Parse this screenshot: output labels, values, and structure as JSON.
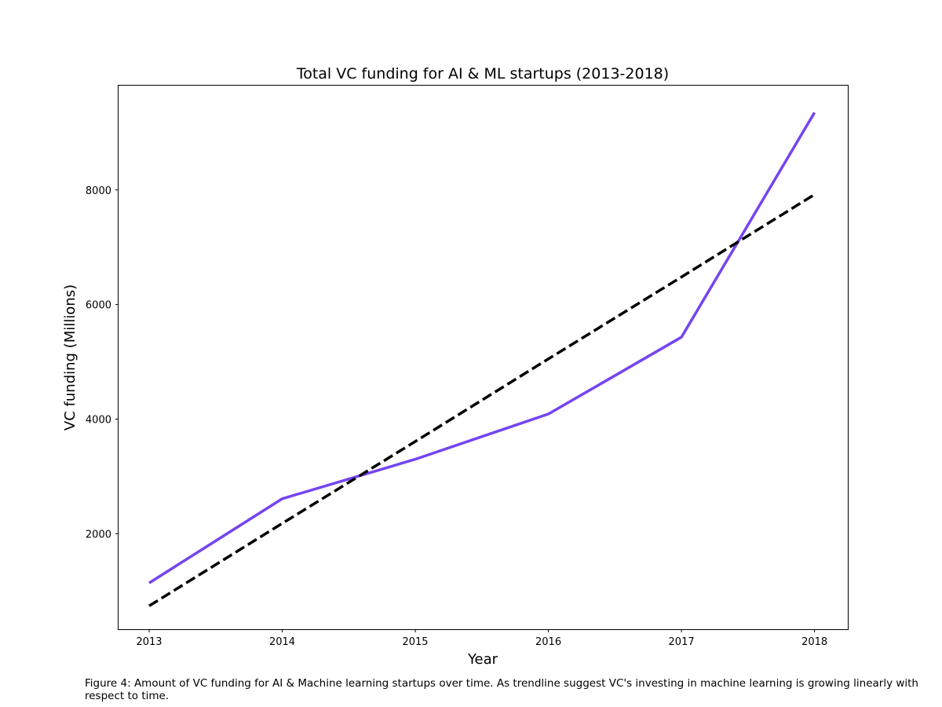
{
  "chart_data": {
    "type": "line",
    "title": "Total VC funding for AI & ML startups (2013-2018)",
    "xlabel": "Year",
    "ylabel": "VC funding (Millions)",
    "x": [
      2013,
      2014,
      2015,
      2016,
      2017,
      2018
    ],
    "x_ticks": [
      "2013",
      "2014",
      "2015",
      "2016",
      "2017",
      "2018"
    ],
    "y_ticks": [
      "2000",
      "4000",
      "6000",
      "8000"
    ],
    "xlim": [
      2012.77,
      2018.25
    ],
    "ylim": [
      333,
      9820
    ],
    "grid": false,
    "series": [
      {
        "values": [
          1140,
          2610,
          3300,
          4090,
          5430,
          9350
        ],
        "color": "#7544f0",
        "style": "solid"
      },
      {
        "values": [
          740,
          2180,
          3610,
          5050,
          6480,
          7920
        ],
        "color": "#000000",
        "style": "dashed"
      }
    ]
  },
  "caption": "Figure 4: Amount of VC funding for AI & Machine learning startups over time. As trendline suggest VC's investing in machine learning is growing linearly with respect to time."
}
